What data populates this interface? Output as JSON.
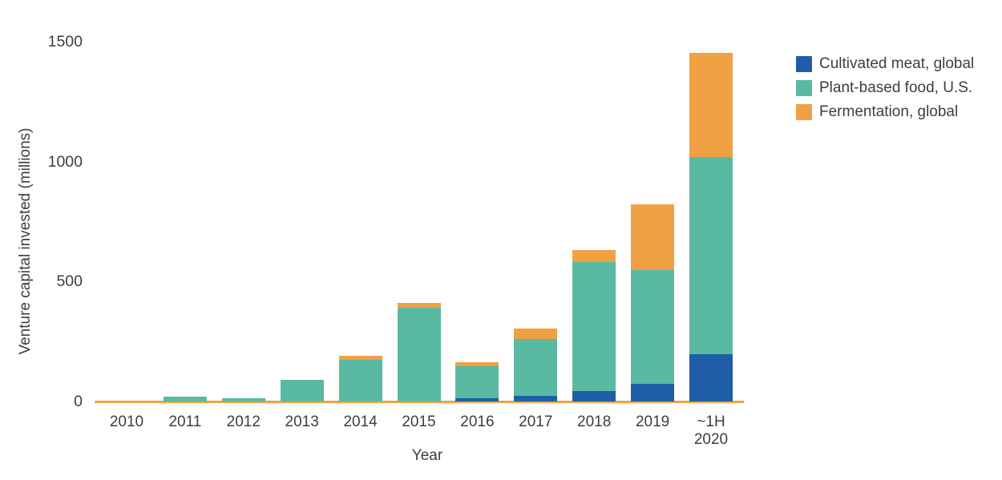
{
  "colors": {
    "cultivated_meat": "#1f5da8",
    "plant_based_food": "#5ab9a2",
    "fermentation": "#f0a144",
    "axis_line": "#f0a144",
    "text": "#3f3e3e",
    "background": "#ffffff"
  },
  "chart_data": {
    "type": "bar",
    "stacked": true,
    "title": "",
    "xlabel": "Year",
    "ylabel": "Venture capital invested (millions)",
    "categories": [
      "2010",
      "2011",
      "2012",
      "2013",
      "2014",
      "2015",
      "2016",
      "2017",
      "2018",
      "2019",
      "~1H\n2020"
    ],
    "series": [
      {
        "name": "Cultivated meat, global",
        "color": "#1f5da8",
        "values": [
          0,
          0,
          0,
          0,
          0,
          0,
          12,
          23,
          43,
          74,
          198
        ]
      },
      {
        "name": "Plant-based food, U.S.",
        "color": "#5ab9a2",
        "values": [
          0,
          20,
          15,
          90,
          175,
          390,
          134,
          238,
          539,
          473,
          820
        ]
      },
      {
        "name": "Fermentation, global",
        "color": "#f0a144",
        "values": [
          0,
          0,
          0,
          0,
          15,
          20,
          19,
          42,
          48,
          274,
          434
        ]
      }
    ],
    "stack_order_bottom_to_top": [
      "Cultivated meat, global",
      "Plant-based food, U.S.",
      "Fermentation, global"
    ],
    "ylim": [
      0,
      1500
    ],
    "y_ticks": [
      0,
      500,
      1000,
      1500
    ],
    "grid": false,
    "legend_position": "top-right",
    "x_axis_line_color": "#f0a144"
  }
}
